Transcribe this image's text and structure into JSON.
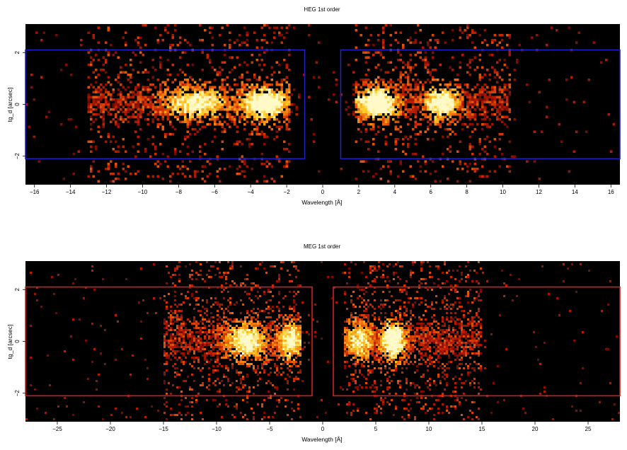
{
  "chart_data": [
    {
      "type": "heatmap",
      "title": "HEG 1st order",
      "xlabel": "Wavelength [Å]",
      "ylabel": "tg_d [arcsec]",
      "xlim": [
        -16.5,
        16.5
      ],
      "ylim": [
        -3.1,
        3.1
      ],
      "x_ticks": [
        -16,
        -14,
        -12,
        -10,
        -8,
        -6,
        -4,
        -2,
        0,
        2,
        4,
        6,
        8,
        10,
        12,
        14,
        16
      ],
      "y_ticks": [
        -2,
        0,
        2
      ],
      "colormap": "heat (black-red-orange-yellow-white)",
      "background": "#000000",
      "regions": [
        {
          "x": [
            -16.5,
            -1.0
          ],
          "y": [
            -2.1,
            2.1
          ],
          "color": "#2020c8"
        },
        {
          "x": [
            1.0,
            16.5
          ],
          "y": [
            -2.1,
            2.1
          ],
          "color": "#2020c8"
        }
      ],
      "emission_peaks": [
        {
          "x": -7.0,
          "width": 1.8,
          "intensity": 0.8
        },
        {
          "x": -3.2,
          "width": 1.4,
          "intensity": 1.0
        },
        {
          "x": 3.0,
          "width": 1.2,
          "intensity": 1.0
        },
        {
          "x": 6.6,
          "width": 1.0,
          "intensity": 0.9
        }
      ],
      "emission_extent": [
        [
          -13.0,
          -1.8
        ],
        [
          1.8,
          10.5
        ]
      ]
    },
    {
      "type": "heatmap",
      "title": "MEG 1st order",
      "xlabel": "Wavelength [Å]",
      "ylabel": "tg_d [arcsec]",
      "xlim": [
        -28,
        28
      ],
      "ylim": [
        -3.1,
        3.1
      ],
      "x_ticks": [
        -25,
        -20,
        -15,
        -10,
        -5,
        0,
        5,
        10,
        15,
        20,
        25
      ],
      "y_ticks": [
        -2,
        0,
        2
      ],
      "colormap": "heat (black-red-orange-yellow-white)",
      "background": "#000000",
      "regions": [
        {
          "x": [
            -28,
            -1.0
          ],
          "y": [
            -2.1,
            2.1
          ],
          "color": "#d02020"
        },
        {
          "x": [
            1.0,
            28
          ],
          "y": [
            -2.1,
            2.1
          ],
          "color": "#d02020"
        }
      ],
      "emission_peaks": [
        {
          "x": -7.2,
          "width": 1.8,
          "intensity": 0.85
        },
        {
          "x": -3.0,
          "width": 1.3,
          "intensity": 0.8
        },
        {
          "x": 3.5,
          "width": 1.4,
          "intensity": 0.7
        },
        {
          "x": 6.6,
          "width": 1.2,
          "intensity": 1.0
        }
      ],
      "emission_extent": [
        [
          -15.0,
          -2.0
        ],
        [
          2.0,
          15.0
        ]
      ]
    }
  ]
}
